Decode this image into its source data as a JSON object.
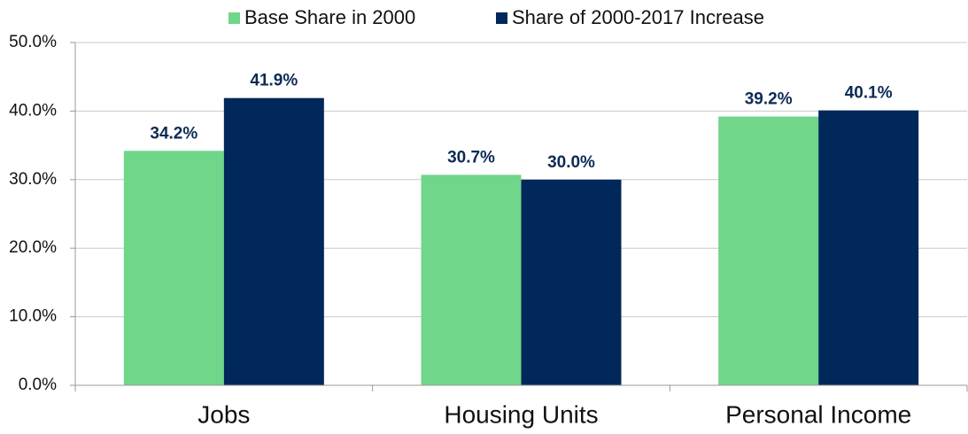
{
  "chart_data": {
    "type": "bar",
    "categories": [
      "Jobs",
      "Housing Units",
      "Personal Income"
    ],
    "series": [
      {
        "name": "Base Share in 2000",
        "color": "#6fd68a",
        "values": [
          34.2,
          30.7,
          39.2
        ],
        "value_labels": [
          "34.2%",
          "30.7%",
          "39.2%"
        ]
      },
      {
        "name": "Share of 2000-2017 Increase",
        "color": "#00285a",
        "values": [
          41.9,
          30.0,
          40.1
        ],
        "value_labels": [
          "41.9%",
          "30.0%",
          "40.1%"
        ]
      }
    ],
    "ylim": [
      0,
      50
    ],
    "yticks": [
      {
        "value": 0,
        "label": "0.0%"
      },
      {
        "value": 10,
        "label": "10.0%"
      },
      {
        "value": 20,
        "label": "20.0%"
      },
      {
        "value": 30,
        "label": "30.0%"
      },
      {
        "value": 40,
        "label": "40.0%"
      },
      {
        "value": 50,
        "label": "50.0%"
      }
    ],
    "grid": true,
    "legend": "top"
  }
}
